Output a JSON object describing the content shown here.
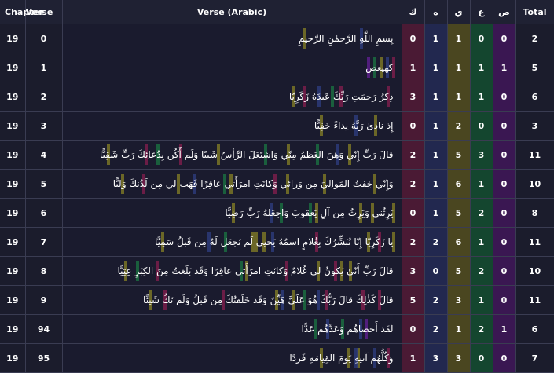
{
  "headers": {
    "chapter": "Chapter",
    "verse": "Verse",
    "text": "Verse (Arabic)",
    "kaf": "ك",
    "ha": "ه",
    "ya": "ي",
    "ain": "ع",
    "sad": "ص",
    "total": "Total"
  },
  "colors": {
    "kaf": "#7a1d4a",
    "ha": "#2d3a78",
    "ya": "#7a7426",
    "ain": "#1b6b3f",
    "sad": "#5c1f8a"
  },
  "rows": [
    {
      "chapter": "19",
      "verse": "0",
      "text": "بِسمِ اللَّهِ الرَّحمٰنِ الرَّحيمِ",
      "k": "0",
      "h": "1",
      "y": "1",
      "a": "0",
      "s": "0",
      "total": "2"
    },
    {
      "chapter": "19",
      "verse": "1",
      "text": "كهيعص",
      "k": "1",
      "h": "1",
      "y": "1",
      "a": "1",
      "s": "1",
      "total": "5"
    },
    {
      "chapter": "19",
      "verse": "2",
      "text": "ذِكرُ رَحمَتِ رَبِّكَ عَبدَهُ زَكَرِيّا",
      "k": "3",
      "h": "1",
      "y": "1",
      "a": "1",
      "s": "0",
      "total": "6"
    },
    {
      "chapter": "19",
      "verse": "3",
      "text": "إِذ نادىٰ رَبَّهُ نِداءً خَفِيًّا",
      "k": "0",
      "h": "1",
      "y": "2",
      "a": "0",
      "s": "0",
      "total": "3"
    },
    {
      "chapter": "19",
      "verse": "4",
      "text": "قالَ رَبِّ إِنّي وَهَنَ العَظمُ مِنّي وَاشتَعَلَ الرَّأسُ شَيبًا وَلَم أَكُن بِدُعائِكَ رَبِّ شَقِيًّا",
      "k": "2",
      "h": "1",
      "y": "5",
      "a": "3",
      "s": "0",
      "total": "11"
    },
    {
      "chapter": "19",
      "verse": "5",
      "text": "وَإِنّي خِفتُ المَوالِيَ مِن وَرائي وَكانَتِ امرَأَتي عاقِرًا فَهَب لي مِن لَدُنكَ وَلِيًّا",
      "k": "2",
      "h": "1",
      "y": "6",
      "a": "1",
      "s": "0",
      "total": "10"
    },
    {
      "chapter": "19",
      "verse": "6",
      "text": "يَرِثُني وَيَرِثُ مِن آلِ يَعقوبَ وَاجعَلهُ رَبِّ رَضِيًّا",
      "k": "0",
      "h": "1",
      "y": "5",
      "a": "2",
      "s": "0",
      "total": "8"
    },
    {
      "chapter": "19",
      "verse": "7",
      "text": "يا زَكَرِيّا إِنّا نُبَشِّرُكَ بِغُلامٍ اسمُهُ يَحيىٰ لَم نَجعَل لَهُ مِن قَبلُ سَمِيًّا",
      "k": "2",
      "h": "2",
      "y": "6",
      "a": "1",
      "s": "0",
      "total": "11"
    },
    {
      "chapter": "19",
      "verse": "8",
      "text": "قالَ رَبِّ أَنّىٰ يَكونُ لي غُلامٌ وَكانَتِ امرَأَتي عاقِرًا وَقَد بَلَغتُ مِنَ الكِبَرِ عِتِيًّا",
      "k": "3",
      "h": "0",
      "y": "5",
      "a": "2",
      "s": "0",
      "total": "10"
    },
    {
      "chapter": "19",
      "verse": "9",
      "text": "قالَ كَذٰلِكَ قالَ رَبُّكَ هُوَ عَلَيَّ هَيِّنٌ وَقَد خَلَقتُكَ مِن قَبلُ وَلَم تَكُ شَيئًا",
      "k": "5",
      "h": "2",
      "y": "3",
      "a": "1",
      "s": "0",
      "total": "11"
    },
    {
      "chapter": "19",
      "verse": "94",
      "text": "لَقَد أَحصاهُم وَعَدَّهُم عَدًّا",
      "k": "0",
      "h": "2",
      "y": "1",
      "a": "2",
      "s": "1",
      "total": "6"
    },
    {
      "chapter": "19",
      "verse": "95",
      "text": "وَكُلُّهُم آتيهِ يَومَ القِيامَةِ فَردًا",
      "k": "1",
      "h": "3",
      "y": "3",
      "a": "0",
      "s": "0",
      "total": "7"
    }
  ]
}
